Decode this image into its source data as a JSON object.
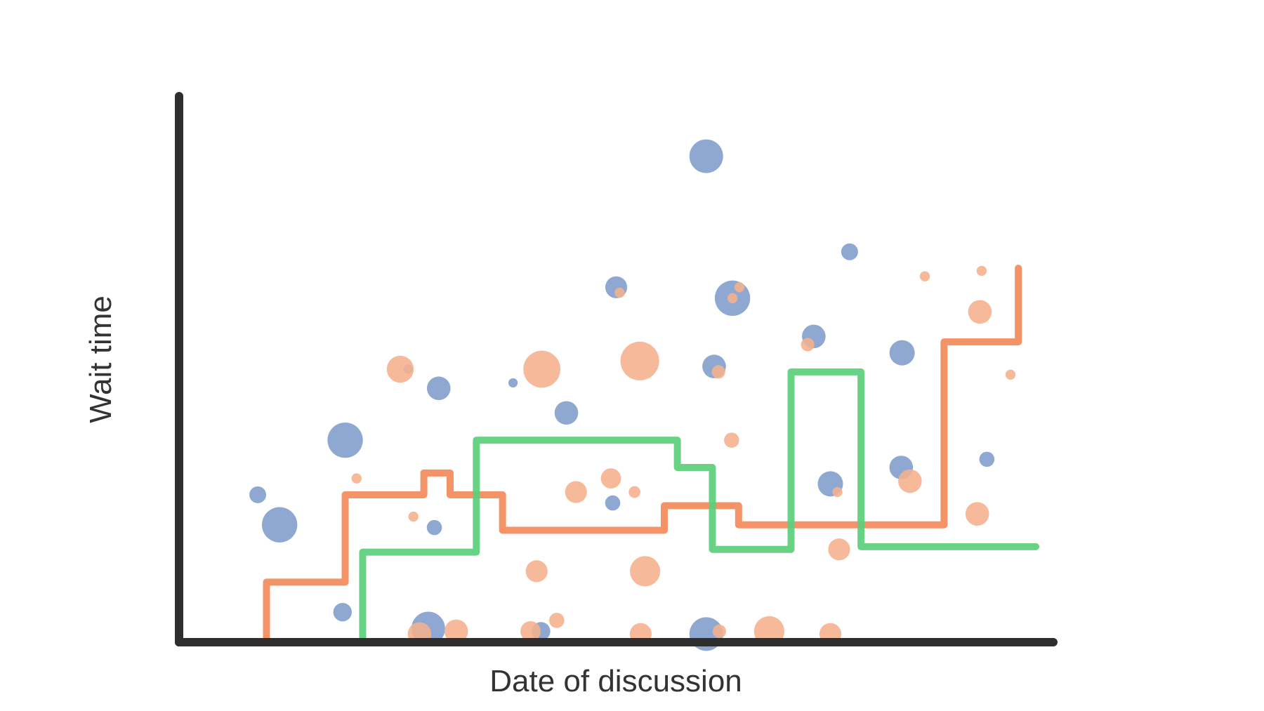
{
  "chart_data": {
    "type": "scatter",
    "title": "",
    "xlabel": "Date of discussion",
    "ylabel": "Wait time",
    "xlim": [
      0,
      100
    ],
    "ylim": [
      0,
      100
    ],
    "grid": false,
    "legend": "none",
    "ticks": "none",
    "colors": {
      "blue": "#7f9ccb",
      "peach": "#f5b08c",
      "orange": "#f28a5a",
      "green": "#5ccf7b",
      "axis": "#2e2e2e"
    },
    "scatter_series": [
      {
        "color_key": "blue",
        "points": [
          {
            "x": 9,
            "y": 27,
            "s": 1.0
          },
          {
            "x": 11.5,
            "y": 21.5,
            "s": 2.1
          },
          {
            "x": 19,
            "y": 37,
            "s": 2.1
          },
          {
            "x": 18.7,
            "y": 5.5,
            "s": 1.1
          },
          {
            "x": 26.2,
            "y": 50,
            "s": 0.55
          },
          {
            "x": 29.7,
            "y": 46.5,
            "s": 1.4
          },
          {
            "x": 29.2,
            "y": 21,
            "s": 0.9
          },
          {
            "x": 28.5,
            "y": 2.5,
            "s": 2.0
          },
          {
            "x": 38.2,
            "y": 47.5,
            "s": 0.55
          },
          {
            "x": 44.3,
            "y": 42,
            "s": 1.4
          },
          {
            "x": 49.6,
            "y": 25.5,
            "s": 0.9
          },
          {
            "x": 41.4,
            "y": 2,
            "s": 1.1
          },
          {
            "x": 50,
            "y": 65,
            "s": 1.3
          },
          {
            "x": 60.3,
            "y": 89,
            "s": 2.0
          },
          {
            "x": 63.3,
            "y": 63,
            "s": 2.1
          },
          {
            "x": 61.2,
            "y": 50.5,
            "s": 1.4
          },
          {
            "x": 60.3,
            "y": 1.5,
            "s": 2.0
          },
          {
            "x": 72.6,
            "y": 56,
            "s": 1.4
          },
          {
            "x": 74.5,
            "y": 29,
            "s": 1.5
          },
          {
            "x": 76.7,
            "y": 71.5,
            "s": 1.0
          },
          {
            "x": 82.7,
            "y": 53,
            "s": 1.5
          },
          {
            "x": 82.6,
            "y": 32,
            "s": 1.4
          },
          {
            "x": 92.4,
            "y": 33.5,
            "s": 0.9
          }
        ]
      },
      {
        "color_key": "peach",
        "points": [
          {
            "x": 25.3,
            "y": 50,
            "s": 1.6
          },
          {
            "x": 20.3,
            "y": 30,
            "s": 0.6
          },
          {
            "x": 26.8,
            "y": 23,
            "s": 0.6
          },
          {
            "x": 27.5,
            "y": 1.5,
            "s": 1.4
          },
          {
            "x": 31.7,
            "y": 2,
            "s": 1.4
          },
          {
            "x": 41.5,
            "y": 50,
            "s": 2.2
          },
          {
            "x": 45.4,
            "y": 27.5,
            "s": 1.3
          },
          {
            "x": 49.4,
            "y": 30,
            "s": 1.2
          },
          {
            "x": 52.1,
            "y": 27.5,
            "s": 0.7
          },
          {
            "x": 40.9,
            "y": 13,
            "s": 1.3
          },
          {
            "x": 43.2,
            "y": 4,
            "s": 0.9
          },
          {
            "x": 40.2,
            "y": 2,
            "s": 1.2
          },
          {
            "x": 52.7,
            "y": 51.5,
            "s": 2.3
          },
          {
            "x": 53.3,
            "y": 13,
            "s": 1.8
          },
          {
            "x": 52.8,
            "y": 1.5,
            "s": 1.3
          },
          {
            "x": 50.4,
            "y": 64,
            "s": 0.6
          },
          {
            "x": 63.3,
            "y": 63,
            "s": 0.6
          },
          {
            "x": 64.1,
            "y": 65,
            "s": 0.6
          },
          {
            "x": 61.7,
            "y": 49.5,
            "s": 0.8
          },
          {
            "x": 63.2,
            "y": 37,
            "s": 0.9
          },
          {
            "x": 61.8,
            "y": 2,
            "s": 0.8
          },
          {
            "x": 67.5,
            "y": 2,
            "s": 1.8
          },
          {
            "x": 71.9,
            "y": 54.5,
            "s": 0.8
          },
          {
            "x": 75.5,
            "y": 17,
            "s": 1.3
          },
          {
            "x": 74.5,
            "y": 1.5,
            "s": 1.3
          },
          {
            "x": 75.3,
            "y": 27.5,
            "s": 0.6
          },
          {
            "x": 85.3,
            "y": 67,
            "s": 0.6
          },
          {
            "x": 91.6,
            "y": 60.5,
            "s": 1.4
          },
          {
            "x": 91.8,
            "y": 68,
            "s": 0.6
          },
          {
            "x": 83.6,
            "y": 29.5,
            "s": 1.4
          },
          {
            "x": 91.3,
            "y": 23.5,
            "s": 1.4
          },
          {
            "x": 95.1,
            "y": 49,
            "s": 0.6
          }
        ]
      }
    ],
    "step_series": [
      {
        "color_key": "orange",
        "points": [
          [
            10,
            0
          ],
          [
            10,
            11
          ],
          [
            19,
            11
          ],
          [
            19,
            27
          ],
          [
            28,
            27
          ],
          [
            28,
            31
          ],
          [
            31,
            31
          ],
          [
            31,
            27
          ],
          [
            37,
            27
          ],
          [
            37,
            20.5
          ],
          [
            55.5,
            20.5
          ],
          [
            55.5,
            25
          ],
          [
            64,
            25
          ],
          [
            64,
            21.5
          ],
          [
            87.5,
            21.5
          ],
          [
            87.5,
            55
          ],
          [
            96,
            55
          ],
          [
            96,
            68.5
          ]
        ]
      },
      {
        "color_key": "green",
        "points": [
          [
            21,
            0
          ],
          [
            21,
            16.5
          ],
          [
            34,
            16.5
          ],
          [
            34,
            37
          ],
          [
            57,
            37
          ],
          [
            57,
            32
          ],
          [
            61,
            32
          ],
          [
            61,
            17
          ],
          [
            70,
            17
          ],
          [
            70,
            49.5
          ],
          [
            78,
            49.5
          ],
          [
            78,
            17.5
          ],
          [
            98,
            17.5
          ]
        ]
      }
    ]
  }
}
